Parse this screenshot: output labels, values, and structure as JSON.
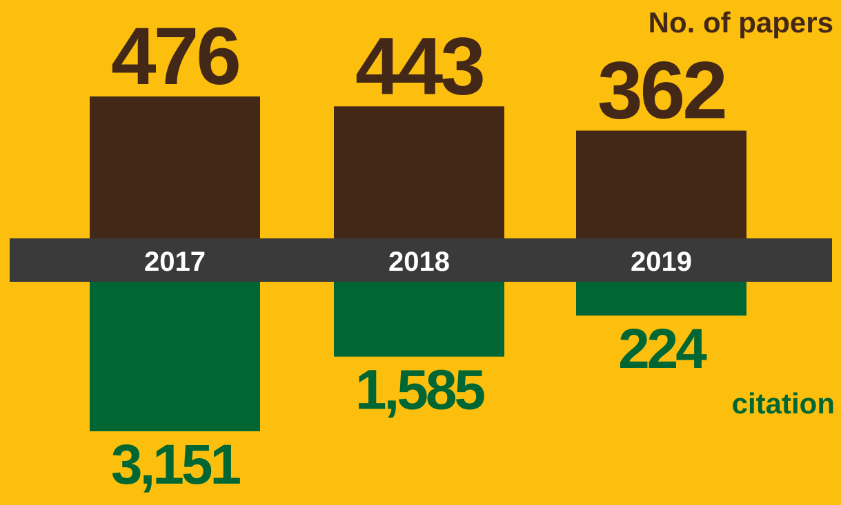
{
  "chart_data": {
    "type": "bar",
    "categories": [
      "2017",
      "2018",
      "2019"
    ],
    "series": [
      {
        "name": "No. of papers",
        "values": [
          476,
          443,
          362
        ],
        "color": "#432818"
      },
      {
        "name": "citation",
        "values": [
          3151,
          1585,
          224
        ],
        "color": "#006633"
      }
    ],
    "value_labels": {
      "papers": [
        "476",
        "443",
        "362"
      ],
      "citation": [
        "3,151",
        "1,585",
        "224"
      ]
    },
    "background_color": "#FCBF0E",
    "axis_band_color": "#3A3A3A",
    "axis_label_color": "#FFFFFF",
    "legend_placement": "papers label top-right, citation label right"
  }
}
